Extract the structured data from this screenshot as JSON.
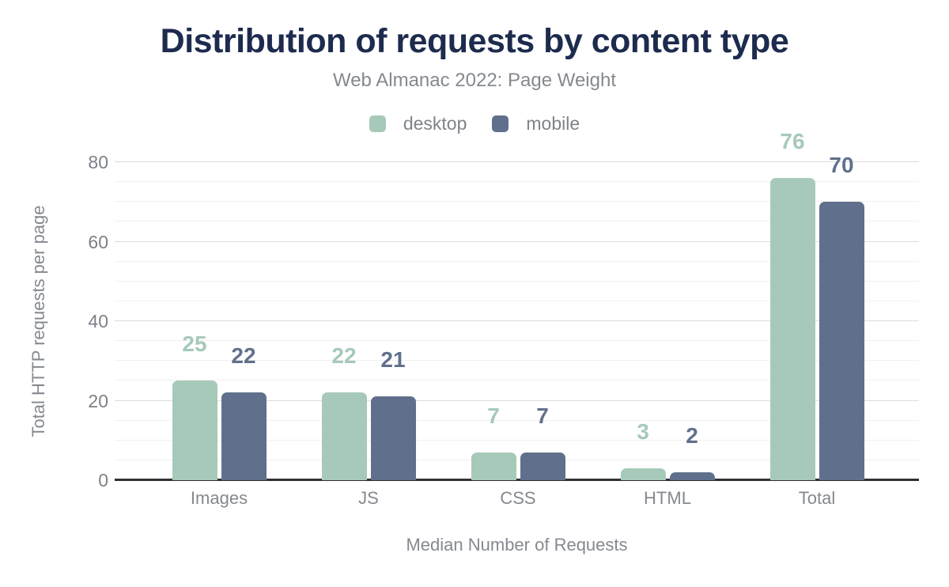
{
  "chart_data": {
    "type": "bar",
    "title": "Distribution of requests by content type",
    "subtitle": "Web Almanac 2022: Page Weight",
    "xlabel": "Median Number of Requests",
    "ylabel": "Total HTTP requests per page",
    "categories": [
      "Images",
      "JS",
      "CSS",
      "HTML",
      "Total"
    ],
    "series": [
      {
        "name": "desktop",
        "color": "#a7c9b9",
        "values": [
          25,
          22,
          7,
          3,
          76
        ]
      },
      {
        "name": "mobile",
        "color": "#60708c",
        "values": [
          22,
          21,
          7,
          2,
          70
        ]
      }
    ],
    "ylim": [
      0,
      80
    ],
    "yticks": [
      0,
      20,
      40,
      60,
      80
    ],
    "minor_grid_step": 5,
    "grid": true,
    "legend_position": "top",
    "value_labels_shown": true
  },
  "colors": {
    "title_text": "#1d2b4e",
    "muted_text": "#85898f",
    "tick_text": "#7d8187",
    "axis_line": "#2e3134",
    "major_gridline": "#dcdcdc",
    "minor_gridline": "#f1f1f1",
    "background": "#ffffff"
  }
}
